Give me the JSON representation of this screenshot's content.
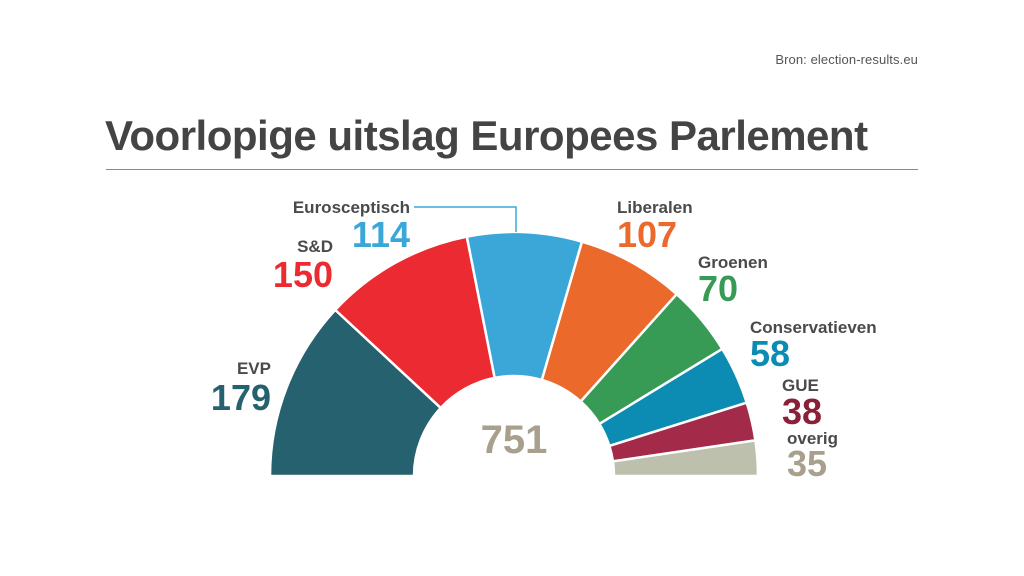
{
  "header": {
    "source": "Bron: election-results.eu",
    "title": "Voorlopige uitslag Europees Parlement"
  },
  "chart_data": {
    "type": "pie",
    "subtype": "hemicycle",
    "total_label": "751",
    "total": 751,
    "series": [
      {
        "name": "EVP",
        "value": 179,
        "color": "#266170"
      },
      {
        "name": "S&D",
        "value": 150,
        "color": "#ec2a31"
      },
      {
        "name": "Eurosceptisch",
        "value": 114,
        "color": "#3ba7d9"
      },
      {
        "name": "Liberalen",
        "value": 107,
        "color": "#ec692c"
      },
      {
        "name": "Groenen",
        "value": 70,
        "color": "#379b56"
      },
      {
        "name": "Conservatieven",
        "value": 58,
        "color": "#0c8cb2"
      },
      {
        "name": "GUE",
        "value": 38,
        "color": "#a32a48"
      },
      {
        "name": "overig",
        "value": 35,
        "color": "#bec0ae"
      }
    ],
    "label_colors": {
      "EVP": "#266170",
      "S&D": "#ec2a31",
      "Eurosceptisch": "#3ba7d9",
      "Liberalen": "#ec692c",
      "Groenen": "#379b56",
      "Conservatieven": "#0c8cb2",
      "GUE": "#8a1f38",
      "overig": "#a8a08d"
    },
    "legend": "labels-around-arc"
  }
}
